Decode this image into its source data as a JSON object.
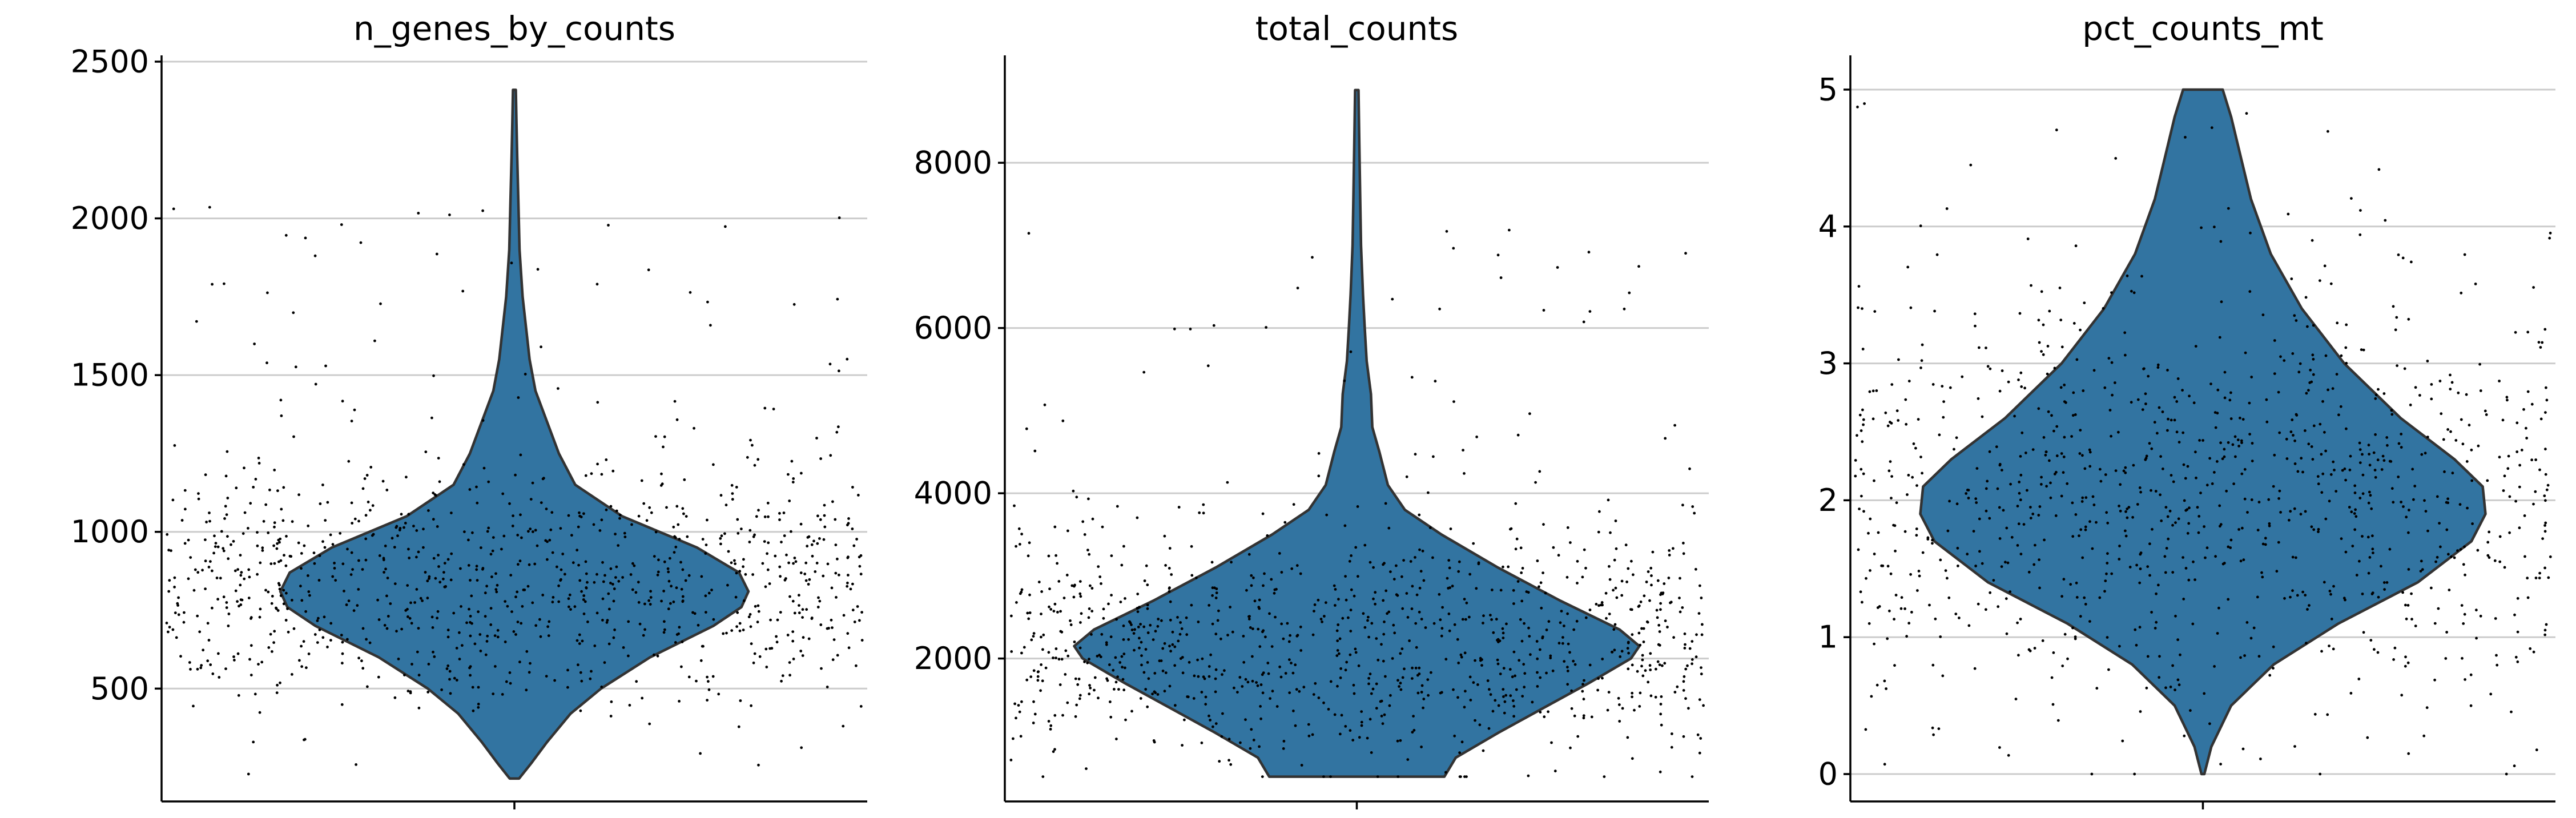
{
  "chart_data": [
    {
      "type": "violin",
      "title": "n_genes_by_counts",
      "ylim": [
        140,
        2520
      ],
      "yticks": [
        {
          "value": 500,
          "label": "500"
        },
        {
          "value": 1000,
          "label": "1000"
        },
        {
          "value": 1500,
          "label": "1500"
        },
        {
          "value": 2000,
          "label": "2000"
        },
        {
          "value": 2500,
          "label": "2500"
        }
      ],
      "grid": true,
      "fill_color": "#3274a1",
      "distribution": {
        "min": 213,
        "max": 2410,
        "profile": [
          [
            213,
            0.02
          ],
          [
            260,
            0.07
          ],
          [
            330,
            0.14
          ],
          [
            420,
            0.24
          ],
          [
            500,
            0.37
          ],
          [
            600,
            0.58
          ],
          [
            700,
            0.85
          ],
          [
            760,
            0.97
          ],
          [
            810,
            1.0
          ],
          [
            870,
            0.96
          ],
          [
            950,
            0.78
          ],
          [
            1050,
            0.46
          ],
          [
            1150,
            0.26
          ],
          [
            1250,
            0.19
          ],
          [
            1350,
            0.14
          ],
          [
            1450,
            0.09
          ],
          [
            1550,
            0.065
          ],
          [
            1650,
            0.05
          ],
          [
            1750,
            0.035
          ],
          [
            1900,
            0.022
          ],
          [
            2050,
            0.017
          ],
          [
            2200,
            0.012
          ],
          [
            2300,
            0.009
          ],
          [
            2410,
            0.006
          ]
        ]
      },
      "points": {
        "count": 1000,
        "center": 820,
        "spread": 190,
        "tail_fraction": 0.07,
        "tail_max": 2050,
        "seed": 11
      }
    },
    {
      "type": "violin",
      "title": "total_counts",
      "ylim": [
        270,
        9300
      ],
      "yticks": [
        {
          "value": 2000,
          "label": "2000"
        },
        {
          "value": 4000,
          "label": "4000"
        },
        {
          "value": 6000,
          "label": "6000"
        },
        {
          "value": 8000,
          "label": "8000"
        }
      ],
      "grid": true,
      "fill_color": "#3274a1",
      "distribution": {
        "min": 570,
        "max": 8880,
        "profile": [
          [
            570,
            0.31
          ],
          [
            800,
            0.35
          ],
          [
            1100,
            0.5
          ],
          [
            1400,
            0.66
          ],
          [
            1700,
            0.82
          ],
          [
            2000,
            0.97
          ],
          [
            2150,
            1.0
          ],
          [
            2350,
            0.93
          ],
          [
            2700,
            0.72
          ],
          [
            3100,
            0.5
          ],
          [
            3500,
            0.3
          ],
          [
            3800,
            0.17
          ],
          [
            4100,
            0.11
          ],
          [
            4500,
            0.08
          ],
          [
            4800,
            0.055
          ],
          [
            5200,
            0.05
          ],
          [
            5600,
            0.035
          ],
          [
            6000,
            0.028
          ],
          [
            6400,
            0.022
          ],
          [
            7000,
            0.015
          ],
          [
            7600,
            0.012
          ],
          [
            8200,
            0.009
          ],
          [
            8880,
            0.006
          ]
        ]
      },
      "points": {
        "count": 1000,
        "center": 2150,
        "spread": 700,
        "tail_fraction": 0.06,
        "tail_max": 7200,
        "seed": 23
      }
    },
    {
      "type": "violin",
      "title": "pct_counts_mt",
      "ylim": [
        -0.2,
        5.25
      ],
      "yticks": [
        {
          "value": 0,
          "label": "0"
        },
        {
          "value": 1,
          "label": "1"
        },
        {
          "value": 2,
          "label": "2"
        },
        {
          "value": 3,
          "label": "3"
        },
        {
          "value": 4,
          "label": "4"
        },
        {
          "value": 5,
          "label": "5"
        }
      ],
      "grid": true,
      "fill_color": "#3274a1",
      "distribution": {
        "min": 0,
        "max": 5,
        "profile": [
          [
            0.0,
            0.005
          ],
          [
            0.2,
            0.03
          ],
          [
            0.5,
            0.1
          ],
          [
            0.8,
            0.25
          ],
          [
            1.1,
            0.48
          ],
          [
            1.4,
            0.76
          ],
          [
            1.7,
            0.95
          ],
          [
            1.9,
            1.0
          ],
          [
            2.1,
            0.99
          ],
          [
            2.3,
            0.89
          ],
          [
            2.6,
            0.7
          ],
          [
            3.0,
            0.5
          ],
          [
            3.4,
            0.35
          ],
          [
            3.8,
            0.24
          ],
          [
            4.2,
            0.17
          ],
          [
            4.5,
            0.135
          ],
          [
            4.8,
            0.1
          ],
          [
            5.0,
            0.07
          ]
        ]
      },
      "points": {
        "count": 1000,
        "center": 2.0,
        "spread": 0.8,
        "tail_fraction": 0.05,
        "tail_max": 4.95,
        "seed": 37
      }
    }
  ]
}
